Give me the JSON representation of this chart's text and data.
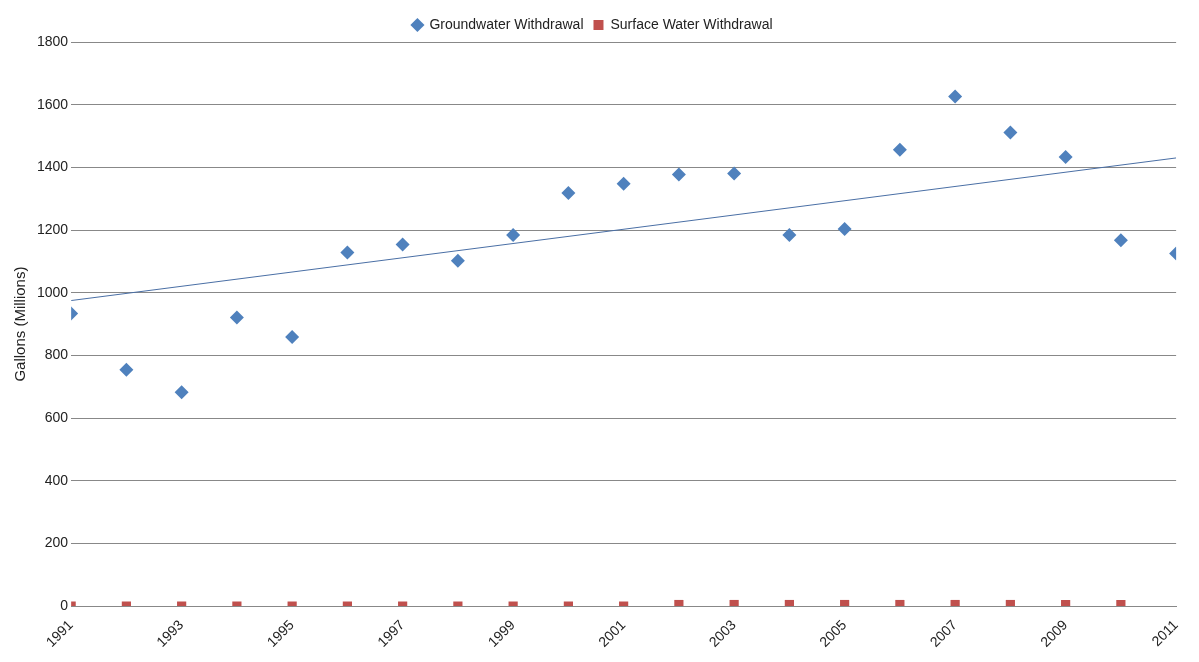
{
  "chart_data": {
    "type": "scatter",
    "ylabel": "Gallons (Millions)",
    "x": [
      1991,
      1992,
      1993,
      1994,
      1995,
      1996,
      1997,
      1998,
      1999,
      2000,
      2001,
      2002,
      2003,
      2004,
      2005,
      2006,
      2007,
      2008,
      2009,
      2010,
      2011
    ],
    "series": [
      {
        "name": "Groundwater Withdrawal",
        "color": "#4f81bd",
        "marker": "diamond",
        "values": [
          934,
          754,
          682,
          921,
          859,
          1128,
          1154,
          1102,
          1184,
          1318,
          1348,
          1377,
          1380,
          1184,
          1203,
          1456,
          1626,
          1511,
          1433,
          1167,
          1125
        ]
      },
      {
        "name": "Surface Water Withdrawal",
        "color": "#c0504d",
        "marker": "square",
        "values": [
          0,
          0,
          0,
          0,
          0,
          0,
          0,
          0,
          0,
          0,
          0,
          5,
          5,
          5,
          5,
          5,
          5,
          5,
          5,
          5,
          null
        ]
      },
      {
        "type": "line",
        "color": "#4a6fa5",
        "marker": "none",
        "x": [
          1991,
          2011
        ],
        "values": [
          975,
          1430
        ]
      }
    ],
    "xlim": [
      1991,
      2011
    ],
    "xticks": [
      1991,
      1993,
      1995,
      1997,
      1999,
      2001,
      2003,
      2005,
      2007,
      2009,
      2011
    ],
    "ylim": [
      0,
      1800
    ],
    "yticks": [
      0,
      200,
      400,
      600,
      800,
      1000,
      1200,
      1400,
      1600,
      1800
    ],
    "grid": "y",
    "legend": "top"
  }
}
